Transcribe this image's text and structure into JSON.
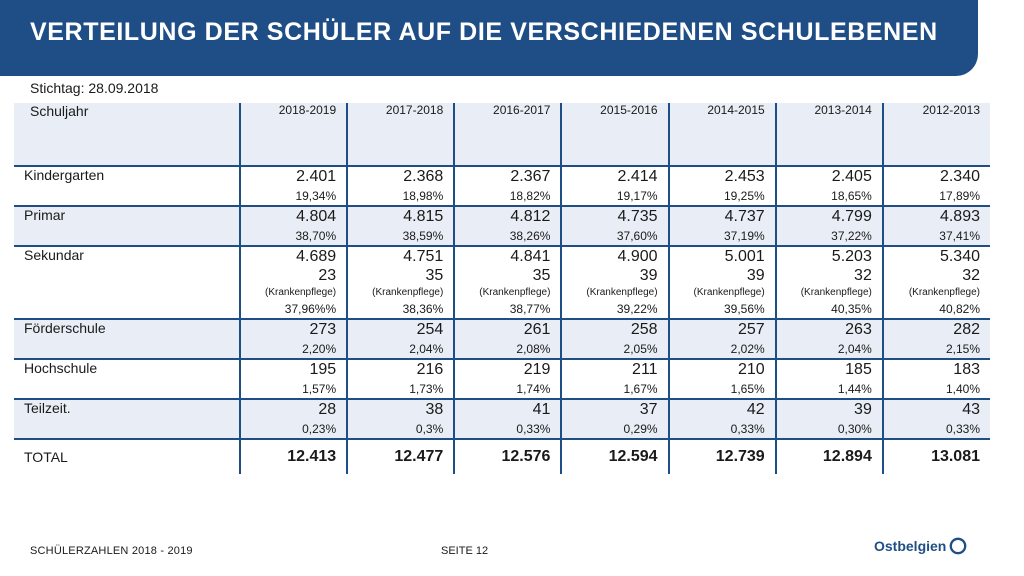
{
  "header": {
    "title": "VERTEILUNG DER SCHÜLER AUF DIE VERSCHIEDENEN SCHULEBENEN"
  },
  "subheader": {
    "stichtag": "Stichtag: 28.09.2018"
  },
  "table": {
    "corner_label": "Schuljahr",
    "years": [
      "2018-2019",
      "2017-2018",
      "2016-2017",
      "2015-2016",
      "2014-2015",
      "2013-2014",
      "2012-2013"
    ],
    "rows": [
      {
        "label": "Kindergarten",
        "cells": [
          {
            "value": "2.401",
            "pct": "19,34%"
          },
          {
            "value": "2.368",
            "pct": "18,98%"
          },
          {
            "value": "2.367",
            "pct": "18,82%"
          },
          {
            "value": "2.414",
            "pct": "19,17%"
          },
          {
            "value": "2.453",
            "pct": "19,25%"
          },
          {
            "value": "2.405",
            "pct": "18,65%"
          },
          {
            "value": "2.340",
            "pct": "17,89%"
          }
        ]
      },
      {
        "label": "Primar",
        "cells": [
          {
            "value": "4.804",
            "pct": "38,70%"
          },
          {
            "value": "4.815",
            "pct": "38,59%"
          },
          {
            "value": "4.812",
            "pct": "38,26%"
          },
          {
            "value": "4.735",
            "pct": "37,60%"
          },
          {
            "value": "4.737",
            "pct": "37,19%"
          },
          {
            "value": "4.799",
            "pct": "37,22%"
          },
          {
            "value": "4.893",
            "pct": "37,41%"
          }
        ]
      },
      {
        "label": "Sekundar",
        "cells": [
          {
            "value": "4.689",
            "sub": "23",
            "note": "(Krankenpflege)",
            "pct": "37,96%%"
          },
          {
            "value": "4.751",
            "sub": "35",
            "note": "(Krankenpflege)",
            "pct": "38,36%"
          },
          {
            "value": "4.841",
            "sub": "35",
            "note": "(Krankenpflege)",
            "pct": "38,77%"
          },
          {
            "value": "4.900",
            "sub": "39",
            "note": "(Krankenpflege)",
            "pct": "39,22%"
          },
          {
            "value": "5.001",
            "sub": "39",
            "note": "(Krankenpflege)",
            "pct": "39,56%"
          },
          {
            "value": "5.203",
            "sub": "32",
            "note": "(Krankenpflege)",
            "pct": "40,35%"
          },
          {
            "value": "5.340",
            "sub": "32",
            "note": "(Krankenpflege)",
            "pct": "40,82%"
          }
        ]
      },
      {
        "label": "Förderschule",
        "cells": [
          {
            "value": "273",
            "pct": "2,20%"
          },
          {
            "value": "254",
            "pct": "2,04%"
          },
          {
            "value": "261",
            "pct": "2,08%"
          },
          {
            "value": "258",
            "pct": "2,05%"
          },
          {
            "value": "257",
            "pct": "2,02%"
          },
          {
            "value": "263",
            "pct": "2,04%"
          },
          {
            "value": "282",
            "pct": "2,15%"
          }
        ]
      },
      {
        "label": "Hochschule",
        "cells": [
          {
            "value": "195",
            "pct": "1,57%"
          },
          {
            "value": "216",
            "pct": "1,73%"
          },
          {
            "value": "219",
            "pct": "1,74%"
          },
          {
            "value": "211",
            "pct": "1,67%"
          },
          {
            "value": "210",
            "pct": "1,65%"
          },
          {
            "value": "185",
            "pct": "1,44%"
          },
          {
            "value": "183",
            "pct": "1,40%"
          }
        ]
      },
      {
        "label": "Teilzeit.",
        "cells": [
          {
            "value": "28",
            "pct": "0,23%"
          },
          {
            "value": "38",
            "pct": "0,3%"
          },
          {
            "value": "41",
            "pct": "0,33%"
          },
          {
            "value": "37",
            "pct": "0,29%"
          },
          {
            "value": "42",
            "pct": "0,33%"
          },
          {
            "value": "39",
            "pct": "0,30%"
          },
          {
            "value": "43",
            "pct": "0,33%"
          }
        ]
      }
    ],
    "total": {
      "label": "TOTAL",
      "values": [
        "12.413",
        "12.477",
        "12.576",
        "12.594",
        "12.739",
        "12.894",
        "13.081"
      ]
    }
  },
  "footer": {
    "left": "SCHÜLERZAHLEN 2018 - 2019",
    "page": "SEITE 12",
    "logo_text": "Ostbelgien"
  },
  "colors": {
    "brand": "#1f4e86",
    "row_alt": "#e9eef6"
  },
  "icons": {
    "logo_mark": "ostbelgien-swirl-icon"
  }
}
